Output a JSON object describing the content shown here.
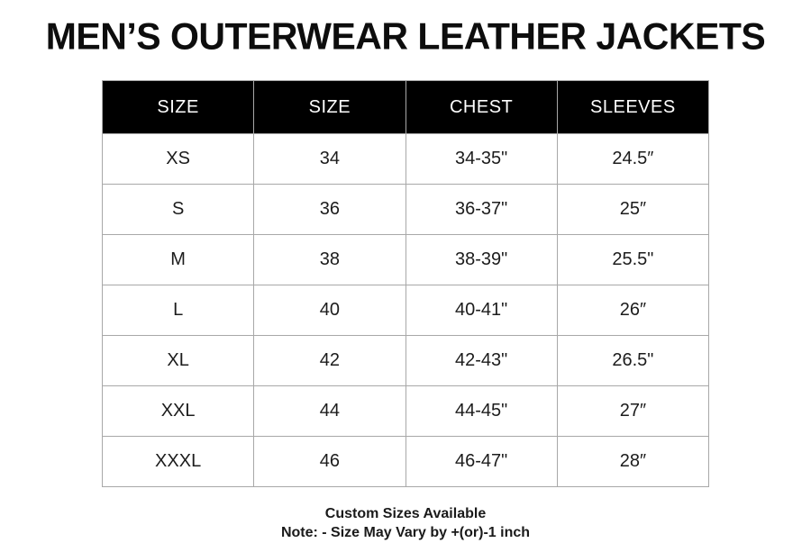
{
  "page": {
    "background_color": "#ffffff",
    "accent_color": "#000000",
    "border_color": "#a8a8a8"
  },
  "title": "MEN’S OUTERWEAR LEATHER JACKETS",
  "table": {
    "columns": [
      "SIZE",
      "SIZE",
      "CHEST",
      "SLEEVES"
    ],
    "rows": [
      [
        "XS",
        "34",
        "34-35\"",
        "24.5″"
      ],
      [
        "S",
        "36",
        "36-37\"",
        "25″"
      ],
      [
        "M",
        "38",
        "38-39\"",
        "25.5\""
      ],
      [
        "L",
        "40",
        "40-41\"",
        "26″"
      ],
      [
        "XL",
        "42",
        "42-43\"",
        "26.5\""
      ],
      [
        "XXL",
        "44",
        "44-45\"",
        "27″"
      ],
      [
        "XXXL",
        "46",
        "46-47\"",
        "28″"
      ]
    ]
  },
  "footer": {
    "line1": "Custom Sizes Available",
    "line2": "Note: - Size May Vary by +(or)-1 inch"
  }
}
